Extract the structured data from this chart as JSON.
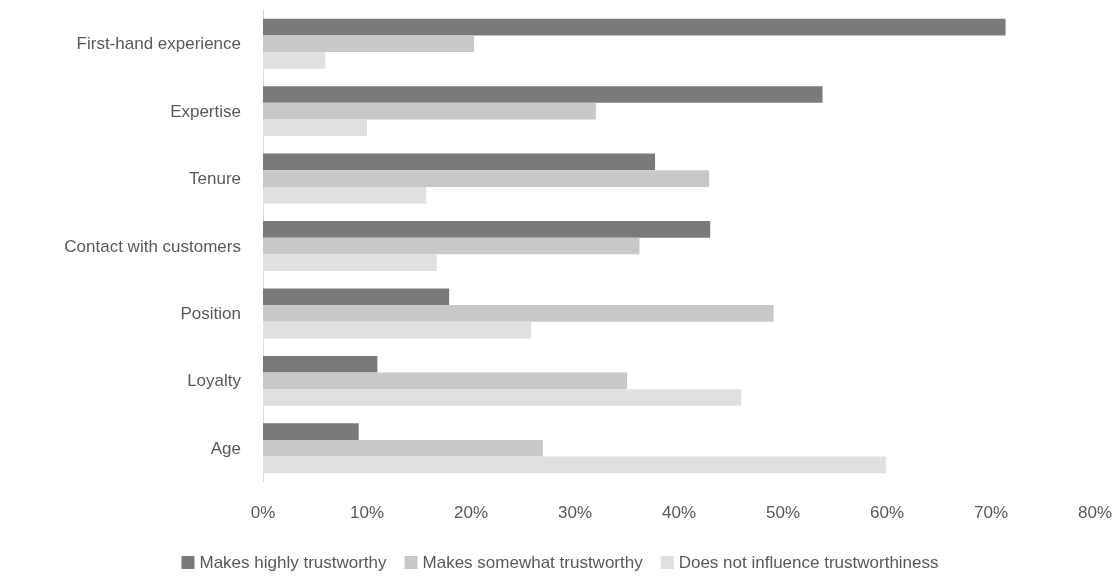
{
  "chart_data": {
    "type": "bar",
    "orientation": "horizontal",
    "categories": [
      "First-hand experience",
      "Expertise",
      "Tenure",
      "Contact with customers",
      "Position",
      "Loyalty",
      "Age"
    ],
    "series": [
      {
        "name": "Makes highly trustworthy",
        "color": "#7a7a7a",
        "values": [
          71.4,
          53.8,
          37.7,
          43,
          17.9,
          11,
          9.2
        ]
      },
      {
        "name": "Makes somewhat trustworthy",
        "color": "#c8c8c8",
        "values": [
          20.3,
          32,
          42.9,
          36.2,
          49.1,
          35,
          26.9
        ]
      },
      {
        "name": "Does not influence trustworthiness",
        "color": "#e0e0e0",
        "values": [
          6,
          10,
          15.7,
          16.7,
          25.8,
          46,
          59.9
        ]
      }
    ],
    "xlim": [
      0,
      80
    ],
    "xticks": [
      {
        "value": 0,
        "label": "0%"
      },
      {
        "value": 10,
        "label": "10%"
      },
      {
        "value": 20,
        "label": "20%"
      },
      {
        "value": 30,
        "label": "30%"
      },
      {
        "value": 40,
        "label": "40%"
      },
      {
        "value": 50,
        "label": "50%"
      },
      {
        "value": 60,
        "label": "60%"
      },
      {
        "value": 70,
        "label": "70%"
      },
      {
        "value": 80,
        "label": "80%"
      }
    ],
    "grid": false,
    "legend": "bottom"
  }
}
